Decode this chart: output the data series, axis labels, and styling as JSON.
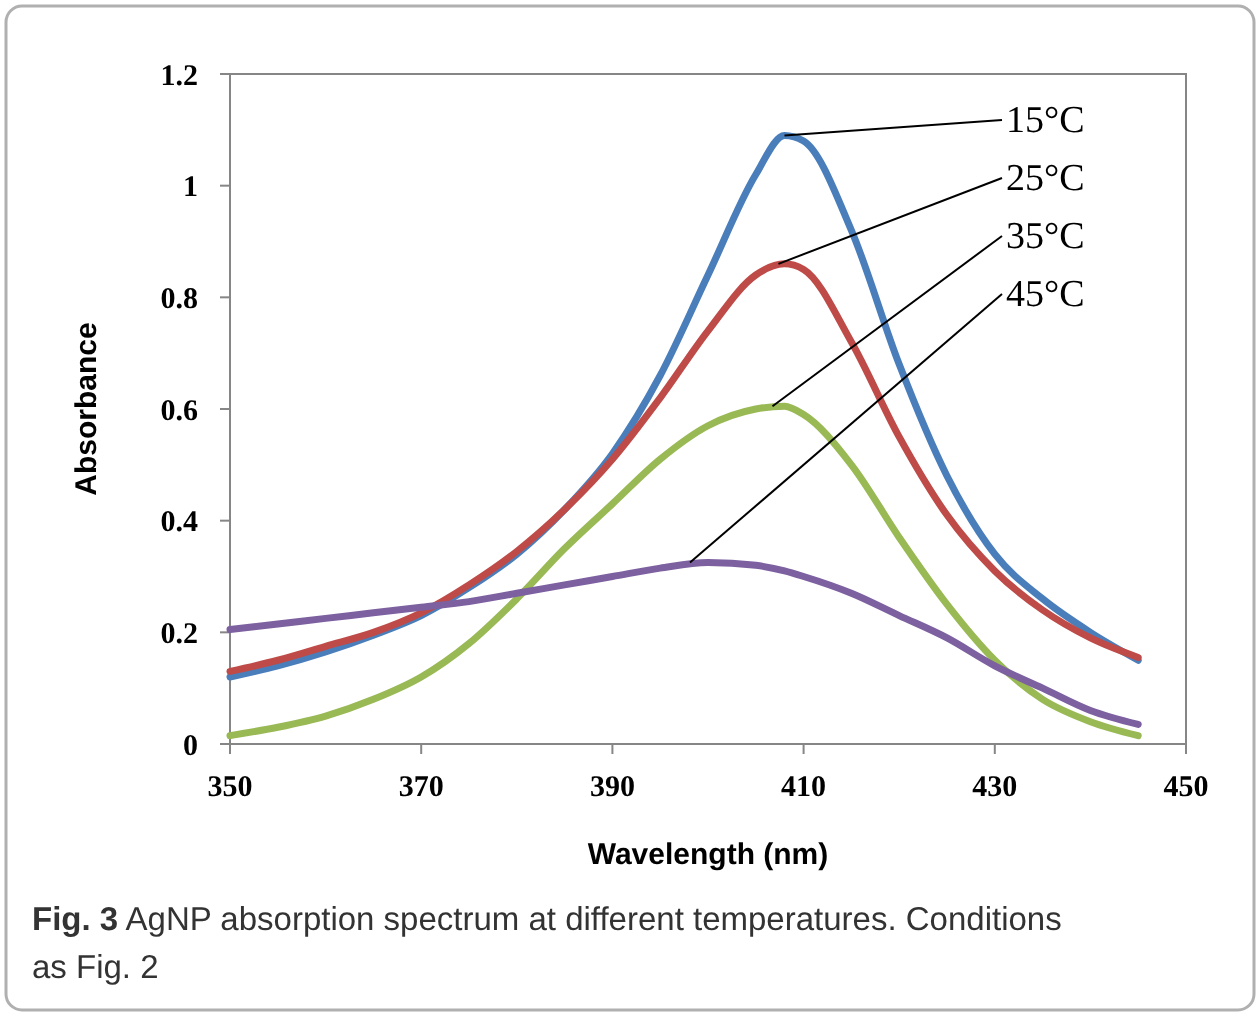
{
  "chart_data": {
    "type": "line",
    "xlabel": "Wavelength (nm)",
    "ylabel": "Absorbance",
    "xlim": [
      350,
      450
    ],
    "xticks": [
      350,
      370,
      390,
      410,
      430,
      450
    ],
    "ylim": [
      0,
      1.2
    ],
    "yticks": [
      0,
      0.2,
      0.4,
      0.6,
      0.8,
      1,
      1.2
    ],
    "grid": false,
    "marker": "none",
    "line_style": "solid",
    "x": [
      350,
      355,
      360,
      365,
      370,
      375,
      380,
      385,
      390,
      395,
      400,
      405,
      408,
      410,
      415,
      420,
      425,
      430,
      435,
      440,
      445
    ],
    "series": [
      {
        "name": "15°C",
        "color": "#4a7ebb",
        "values": [
          0.12,
          0.14,
          0.165,
          0.195,
          0.23,
          0.28,
          0.34,
          0.42,
          0.52,
          0.66,
          0.84,
          1.02,
          1.09,
          1.08,
          0.92,
          0.68,
          0.48,
          0.34,
          0.26,
          0.2,
          0.15
        ]
      },
      {
        "name": "25°C",
        "color": "#be4b48",
        "values": [
          0.13,
          0.15,
          0.175,
          0.2,
          0.235,
          0.285,
          0.345,
          0.42,
          0.51,
          0.62,
          0.74,
          0.84,
          0.86,
          0.85,
          0.72,
          0.55,
          0.41,
          0.31,
          0.24,
          0.19,
          0.155
        ]
      },
      {
        "name": "35°C",
        "color": "#98b954",
        "values": [
          0.015,
          0.03,
          0.05,
          0.08,
          0.12,
          0.18,
          0.26,
          0.35,
          0.43,
          0.51,
          0.57,
          0.6,
          0.605,
          0.59,
          0.5,
          0.37,
          0.25,
          0.15,
          0.08,
          0.04,
          0.015
        ]
      },
      {
        "name": "45°C",
        "color": "#7d60a0",
        "values": [
          0.205,
          0.215,
          0.225,
          0.235,
          0.245,
          0.255,
          0.27,
          0.285,
          0.3,
          0.315,
          0.325,
          0.32,
          0.31,
          0.3,
          0.27,
          0.23,
          0.19,
          0.14,
          0.1,
          0.06,
          0.035
        ]
      }
    ],
    "annotations": [
      "Fig. 3 AgNP absorption spectrum at different temperatures. Conditions as Fig. 2"
    ]
  }
}
